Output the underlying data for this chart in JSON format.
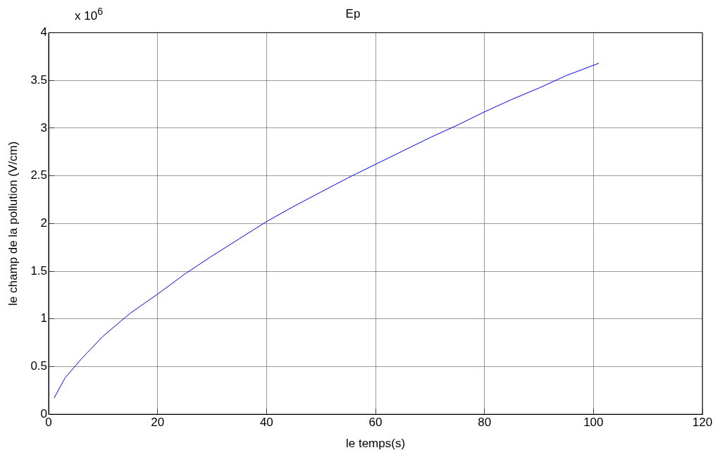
{
  "chart_data": {
    "type": "line",
    "title": "Ep",
    "xlabel": "le temps(s)",
    "ylabel": "le champ de la pollution (V/cm)",
    "annotations": [
      "x 10$^{6}$"
    ],
    "x": [
      1,
      3,
      6,
      10,
      15,
      20,
      25,
      30,
      35,
      40,
      45,
      50,
      55,
      60,
      65,
      70,
      75,
      80,
      85,
      90,
      95,
      101
    ],
    "series": [
      {
        "color": "#0000ff",
        "values": [
          0.17,
          0.38,
          0.58,
          0.82,
          1.06,
          1.26,
          1.47,
          1.66,
          1.84,
          2.02,
          2.18,
          2.33,
          2.48,
          2.62,
          2.76,
          2.9,
          3.03,
          3.17,
          3.3,
          3.42,
          3.55,
          3.68
        ]
      }
    ],
    "xlim": [
      0,
      120
    ],
    "xticks": [
      0,
      20,
      40,
      60,
      80,
      100,
      120
    ],
    "ylim": [
      0,
      4
    ],
    "yticks": [
      0,
      0.5,
      1,
      1.5,
      2,
      2.5,
      3,
      3.5,
      4
    ],
    "grid": true,
    "legend": false,
    "marker": "none",
    "line_style": "solid"
  }
}
